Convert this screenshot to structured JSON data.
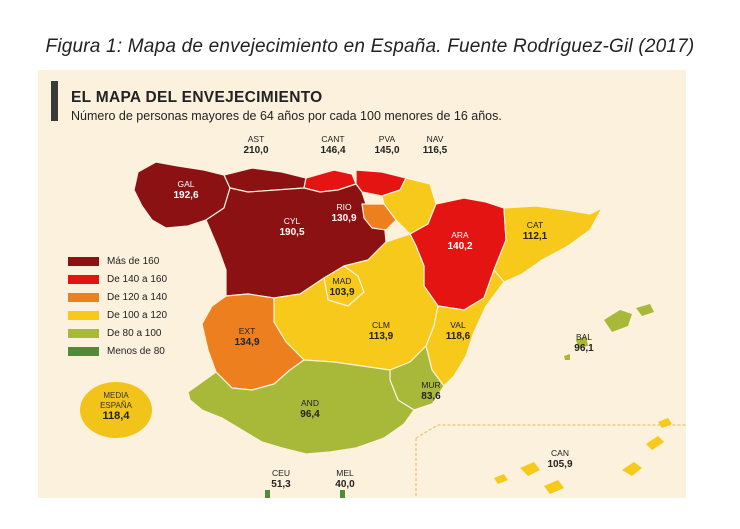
{
  "caption": "Figura 1: Mapa de envejecimiento en España. Fuente Rodríguez-Gil (2017)",
  "map": {
    "title": "EL MAPA DEL ENVEJECIMIENTO",
    "subtitle": "Número de personas mayores de 64 años por cada 100 menores de 16 años.",
    "colors": {
      "mas_160": "#8b1113",
      "140_160": "#e41413",
      "120_140": "#ee7f1e",
      "100_120": "#f6c91a",
      "80_100": "#a8b93a",
      "menos_80": "#4f8b38",
      "background": "#fbf1dc"
    },
    "legend": [
      {
        "label": "Más de 160",
        "color": "#8b1113"
      },
      {
        "label": "De 140 a 160",
        "color": "#e41413"
      },
      {
        "label": "De 120 a 140",
        "color": "#ee7f1e"
      },
      {
        "label": "De 100 a 120",
        "color": "#f6c91a"
      },
      {
        "label": "De 80 a 100",
        "color": "#a8b93a"
      },
      {
        "label": "Menos de 80",
        "color": "#4f8b38"
      }
    ],
    "regions": [
      {
        "code": "AST",
        "value": "210,0"
      },
      {
        "code": "CANT",
        "value": "146,4"
      },
      {
        "code": "PVA",
        "value": "145,0"
      },
      {
        "code": "NAV",
        "value": "116,5"
      },
      {
        "code": "GAL",
        "value": "192,6"
      },
      {
        "code": "RIO",
        "value": "130,9"
      },
      {
        "code": "CYL",
        "value": "190,5"
      },
      {
        "code": "ARA",
        "value": "140,2"
      },
      {
        "code": "CAT",
        "value": "112,1"
      },
      {
        "code": "MAD",
        "value": "103,9"
      },
      {
        "code": "EXT",
        "value": "134,9"
      },
      {
        "code": "CLM",
        "value": "113,9"
      },
      {
        "code": "VAL",
        "value": "118,6"
      },
      {
        "code": "BAL",
        "value": "96,1"
      },
      {
        "code": "MUR",
        "value": "83,6"
      },
      {
        "code": "AND",
        "value": "96,4"
      },
      {
        "code": "CAN",
        "value": "105,9"
      },
      {
        "code": "CEU",
        "value": "51,3"
      },
      {
        "code": "MEL",
        "value": "40,0"
      }
    ],
    "media": {
      "label_line1": "MEDIA",
      "label_line2": "ESPAÑA",
      "value": "118,4"
    }
  }
}
